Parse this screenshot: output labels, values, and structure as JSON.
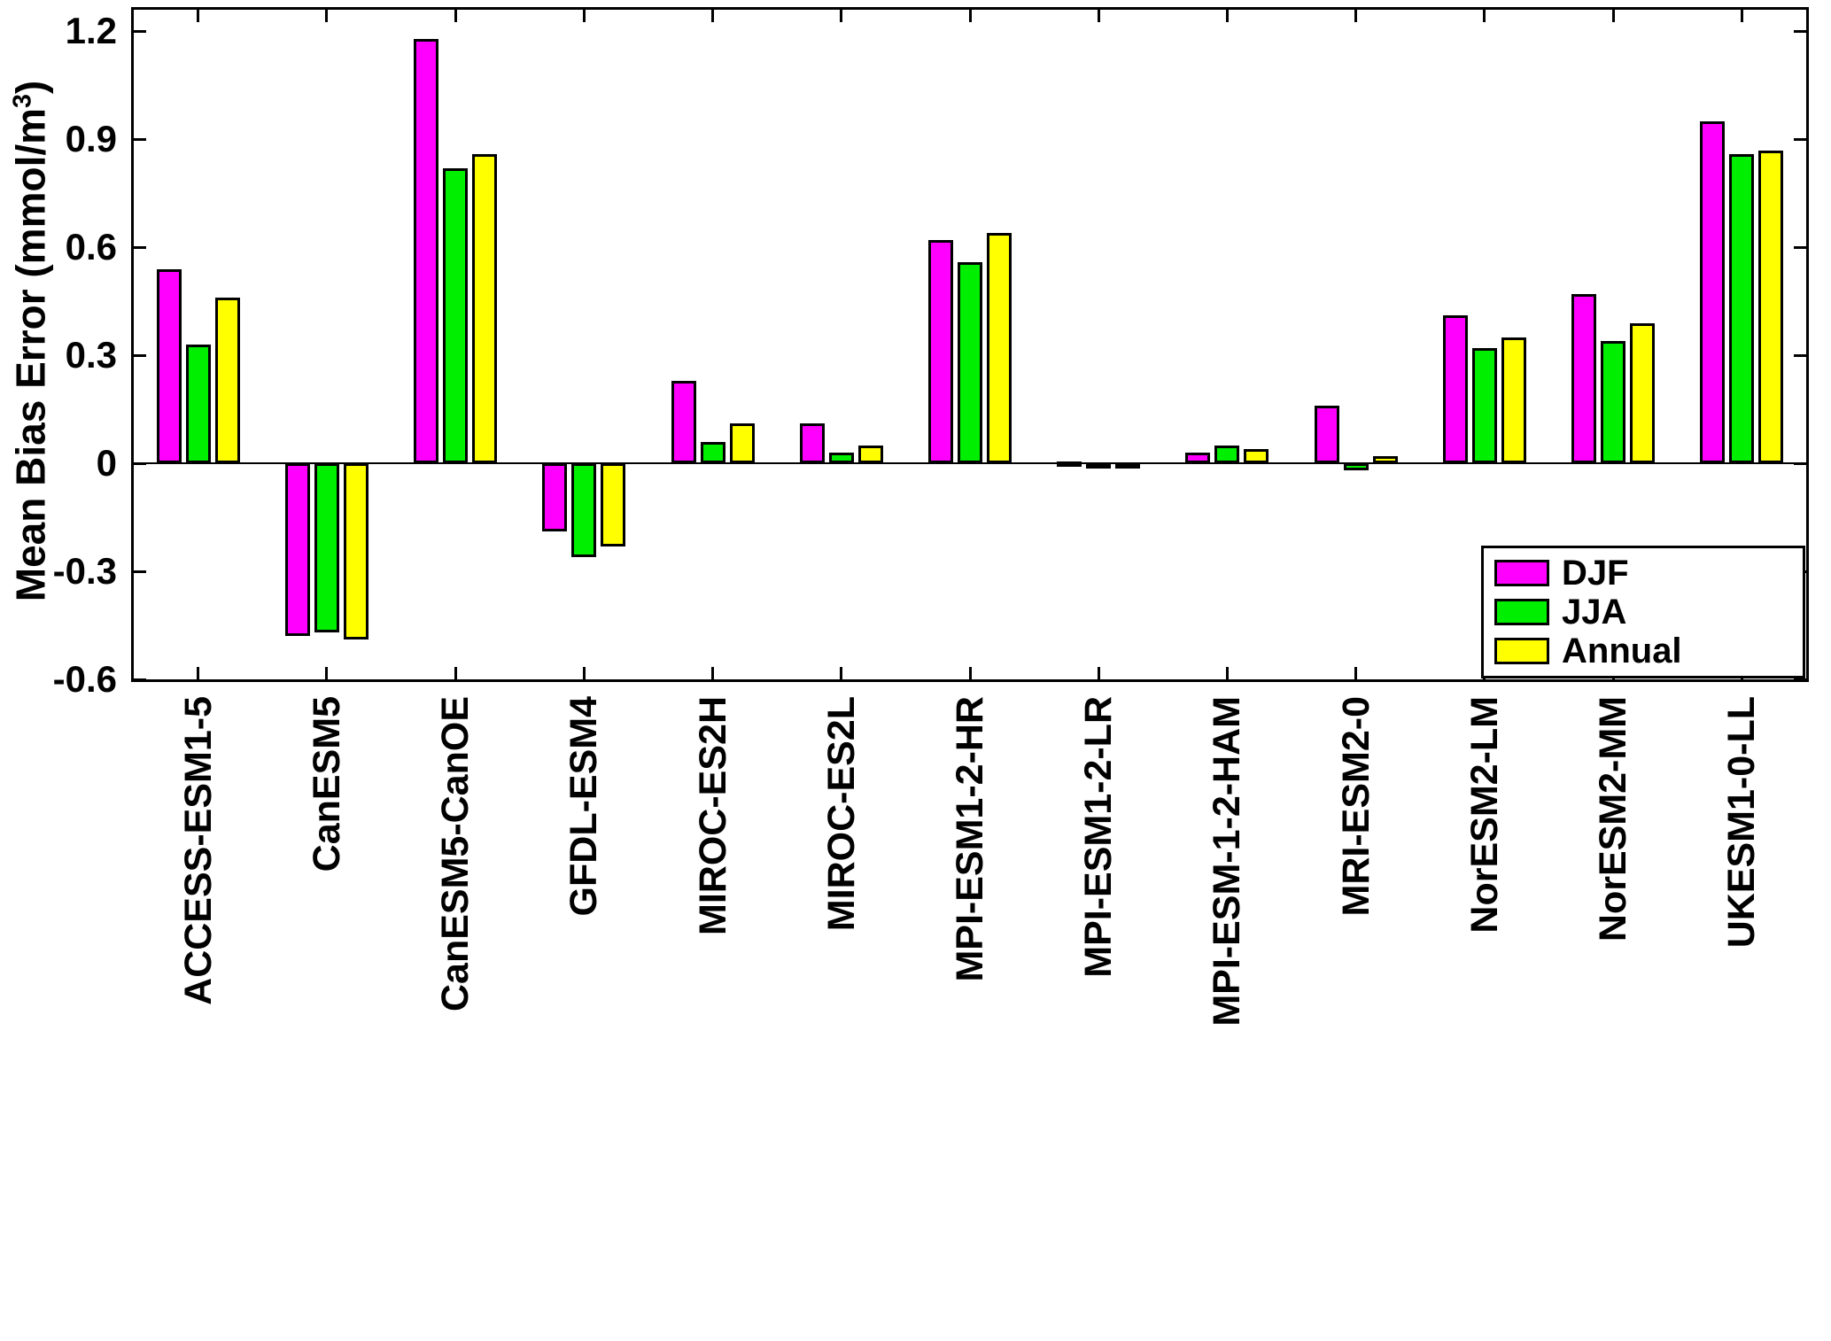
{
  "chart_data": {
    "type": "bar",
    "title": "",
    "ylabel": "Mean Bias Error (mmol/m³)",
    "ylabel_parts": {
      "prefix": "Mean Bias Error (mmol/m",
      "sup": "3",
      "suffix": ")"
    },
    "categories": [
      "ACCESS-ESM1-5",
      "CanESM5",
      "CanESM5-CanOE",
      "GFDL-ESM4",
      "MIROC-ES2H",
      "MIROC-ES2L",
      "MPI-ESM1-2-HR",
      "MPI-ESM1-2-LR",
      "MPI-ESM-1-2-HAM",
      "MRI-ESM2-0",
      "NorESM2-LM",
      "NorESM2-MM",
      "UKESM1-0-LL"
    ],
    "series": [
      {
        "name": "DJF",
        "color": "#FF00FF",
        "values": [
          0.54,
          -0.48,
          1.18,
          -0.19,
          0.23,
          0.11,
          0.62,
          0.005,
          0.03,
          0.16,
          0.41,
          0.47,
          0.95
        ]
      },
      {
        "name": "JJA",
        "color": "#00EE00",
        "values": [
          0.33,
          -0.47,
          0.82,
          -0.26,
          0.06,
          0.03,
          0.56,
          -0.01,
          0.05,
          -0.02,
          0.32,
          0.34,
          0.86
        ]
      },
      {
        "name": "Annual",
        "color": "#FFFF00",
        "values": [
          0.46,
          -0.49,
          0.86,
          -0.23,
          0.11,
          0.05,
          0.64,
          -0.015,
          0.04,
          0.02,
          0.35,
          0.39,
          0.87
        ]
      }
    ],
    "ylim": [
      -0.6,
      1.26
    ],
    "yticks": [
      {
        "value": -0.6,
        "label": "-0.6"
      },
      {
        "value": -0.3,
        "label": "-0.3"
      },
      {
        "value": 0,
        "label": "0"
      },
      {
        "value": 0.3,
        "label": "0.3"
      },
      {
        "value": 0.6,
        "label": "0.6"
      },
      {
        "value": 0.9,
        "label": "0.9"
      },
      {
        "value": 1.2,
        "label": "1.2"
      }
    ],
    "grid": false,
    "legend_position": "lower right",
    "axis_color": "#000000",
    "bar_edge_color": "#000000",
    "background": "#FFFFFF"
  },
  "legend": {
    "items": [
      {
        "label": "DJF",
        "color": "#FF00FF"
      },
      {
        "label": "JJA",
        "color": "#00EE00"
      },
      {
        "label": "Annual",
        "color": "#FFFF00"
      }
    ]
  }
}
